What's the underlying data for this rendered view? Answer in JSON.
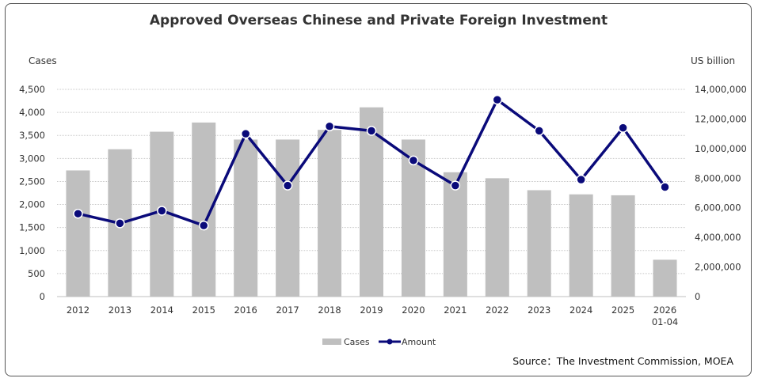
{
  "chart_data": {
    "type": "bar+line",
    "title": "Approved Overseas Chinese and Private Foreign Investment",
    "ylabel_left": "Cases",
    "ylabel_right": "US billion",
    "categories": [
      "2012",
      "2013",
      "2014",
      "2015",
      "2016",
      "2017",
      "2018",
      "2019",
      "2020",
      "2021",
      "2022",
      "2023",
      "2024",
      "2025",
      "2026\n01-04"
    ],
    "series": [
      {
        "name": "Cases",
        "type": "bar",
        "axis": "left",
        "color": "#bfbfbf",
        "values": [
          2740,
          3200,
          3580,
          3780,
          3410,
          3410,
          3620,
          4110,
          3410,
          2700,
          2570,
          2310,
          2220,
          2200,
          800
        ]
      },
      {
        "name": "Amount",
        "type": "line",
        "axis": "right",
        "color": "#0a0a7a",
        "values": [
          5600000,
          4950000,
          5800000,
          4800000,
          11000000,
          7500000,
          11500000,
          11200000,
          9200000,
          7500000,
          13300000,
          11200000,
          7900000,
          11400000,
          7400000
        ]
      }
    ],
    "ylim_left": [
      0,
      4500
    ],
    "yticks_left": [
      "0",
      "500",
      "1,000",
      "1,500",
      "2,000",
      "2,500",
      "3,000",
      "3,500",
      "4,000",
      "4,500"
    ],
    "ylim_right": [
      0,
      14000000
    ],
    "yticks_right": [
      "0",
      "2,000,000",
      "4,000,000",
      "6,000,000",
      "8,000,000",
      "10,000,000",
      "12,000,000",
      "14,000,000"
    ],
    "grid": true,
    "legend": "bottom-center",
    "source": "Source：The Investment Commission, MOEA"
  }
}
